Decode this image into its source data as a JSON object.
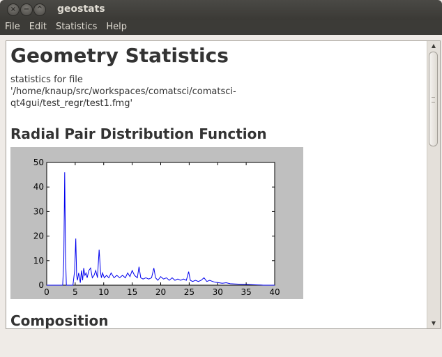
{
  "window": {
    "title": "geostats",
    "close_glyph": "×",
    "minimize_glyph": "−",
    "maximize_glyph": "^"
  },
  "menubar": {
    "items": [
      "File",
      "Edit",
      "Statistics",
      "Help"
    ]
  },
  "document": {
    "heading": "Geometry Statistics",
    "file_line": "statistics for file '/home/knaup/src/workspaces/comatsci/comatsci-qt4gui/test_regr/test1.fmg'",
    "rdf_heading": "Radial Pair Distribution Function",
    "composition_heading": "Composition"
  },
  "colors": {
    "line": "#0000ee",
    "plot_background": "#bfbfbf"
  },
  "chart_data": {
    "type": "line",
    "title": "",
    "xlabel": "",
    "ylabel": "",
    "xlim": [
      0,
      40
    ],
    "ylim": [
      0,
      50
    ],
    "xticks": [
      0,
      5,
      10,
      15,
      20,
      25,
      30,
      35,
      40
    ],
    "yticks": [
      0,
      10,
      20,
      30,
      40,
      50
    ],
    "grid": false,
    "series": [
      {
        "x": [
          0,
          2.8,
          3.0,
          3.15,
          3.3,
          3.45,
          4.6,
          4.9,
          5.1,
          5.25,
          5.4,
          5.6,
          5.9,
          6.1,
          6.3,
          6.5,
          6.7,
          6.9,
          7.1,
          7.4,
          7.7,
          8.0,
          8.3,
          8.6,
          8.9,
          9.2,
          9.45,
          9.6,
          9.8,
          10.1,
          10.5,
          10.9,
          11.3,
          11.8,
          12.3,
          12.8,
          13.3,
          13.8,
          14.2,
          14.6,
          15.0,
          15.4,
          15.9,
          16.2,
          16.5,
          16.9,
          17.4,
          17.9,
          18.4,
          18.8,
          19.1,
          19.5,
          20.0,
          20.5,
          21.0,
          21.5,
          22.0,
          22.5,
          23.0,
          23.5,
          24.0,
          24.5,
          24.9,
          25.2,
          25.6,
          26.1,
          26.6,
          27.1,
          27.6,
          28.1,
          28.6,
          29.1,
          29.6,
          30.2,
          30.8,
          31.5,
          32.2,
          33.0,
          34.0,
          35.0,
          36.0,
          37.0,
          37.6,
          38.0,
          40.0
        ],
        "y": [
          0,
          0,
          10,
          46,
          12,
          0,
          0,
          6,
          19,
          4,
          2,
          5,
          1,
          6,
          2,
          7,
          4,
          5,
          3,
          6,
          7,
          3,
          4,
          6,
          3,
          14.5,
          5,
          3,
          5,
          3,
          4,
          3,
          5,
          3,
          4,
          3,
          4,
          3,
          5,
          3.5,
          6,
          4,
          3,
          7.5,
          3,
          2.5,
          3,
          2.5,
          3,
          7,
          3,
          2,
          3.5,
          2.5,
          3,
          2,
          3,
          2,
          2.5,
          2,
          2.5,
          2,
          5.5,
          2,
          1.5,
          2,
          1.5,
          2,
          3,
          1.5,
          2,
          1.5,
          1.2,
          1,
          0.8,
          1,
          0.6,
          0.5,
          0.4,
          0.3,
          0.2,
          0.1,
          0.05,
          0,
          0
        ]
      }
    ]
  }
}
